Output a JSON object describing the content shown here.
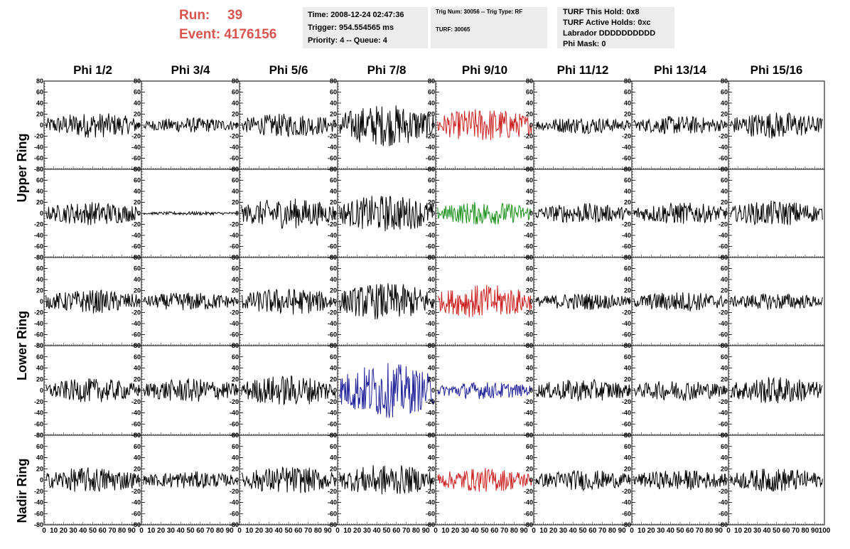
{
  "header": {
    "run_label": "Run:",
    "run_value": "39",
    "event_label": "Event:",
    "event_value": "4176156"
  },
  "time_box": {
    "time": "Time: 2008-12-24 02:47:36",
    "trigger": "Trigger: 954.554565 ms",
    "priority": "Priority: 4 -- Queue: 4"
  },
  "trig_box": {
    "trig": "Trig Num: 30056 -- Trig Type: RF",
    "turf": "TURF: 30065"
  },
  "turf_box": {
    "this_hold": "TURF This Hold: 0x8",
    "active_holds": "TURF Active Holds: 0xc",
    "labrador": "Labrador DDDDDDDDDD",
    "phi_mask": "Phi Mask: 0"
  },
  "chart_data": {
    "type": "line",
    "columns": [
      "Phi 1/2",
      "Phi 3/4",
      "Phi 5/6",
      "Phi 7/8",
      "Phi 9/10",
      "Phi 11/12",
      "Phi 13/14",
      "Phi 15/16"
    ],
    "ring_labels": [
      "Upper Ring",
      "Lower Ring",
      "Nadir Ring"
    ],
    "rows": 5,
    "xlim": [
      0,
      100
    ],
    "x_ticks": [
      0,
      10,
      20,
      30,
      40,
      50,
      60,
      70,
      80,
      90,
      100
    ],
    "ylim": [
      -80,
      80
    ],
    "y_ticks": [
      -80,
      -60,
      -40,
      -20,
      0,
      20,
      40,
      60,
      80
    ],
    "colors": {
      "default": "#000000",
      "red": "#cc2222",
      "green": "#1a8f1a",
      "blue": "#22229a"
    },
    "amplitude_grid": [
      [
        15,
        9,
        14,
        25,
        20,
        10,
        11,
        16
      ],
      [
        14,
        2,
        18,
        22,
        14,
        12,
        13,
        15
      ],
      [
        14,
        11,
        16,
        22,
        20,
        10,
        12,
        10
      ],
      [
        14,
        14,
        18,
        32,
        10,
        13,
        12,
        16
      ],
      [
        15,
        10,
        16,
        18,
        14,
        12,
        12,
        14
      ]
    ],
    "color_grid": [
      [
        "default",
        "default",
        "default",
        "default",
        "red",
        "default",
        "default",
        "default"
      ],
      [
        "default",
        "default",
        "default",
        "default",
        "green",
        "default",
        "default",
        "default"
      ],
      [
        "default",
        "default",
        "default",
        "default",
        "red",
        "default",
        "default",
        "default"
      ],
      [
        "default",
        "default",
        "default",
        "blue",
        "blue",
        "default",
        "default",
        "default"
      ],
      [
        "default",
        "default",
        "default",
        "default",
        "red",
        "default",
        "default",
        "default"
      ]
    ]
  }
}
